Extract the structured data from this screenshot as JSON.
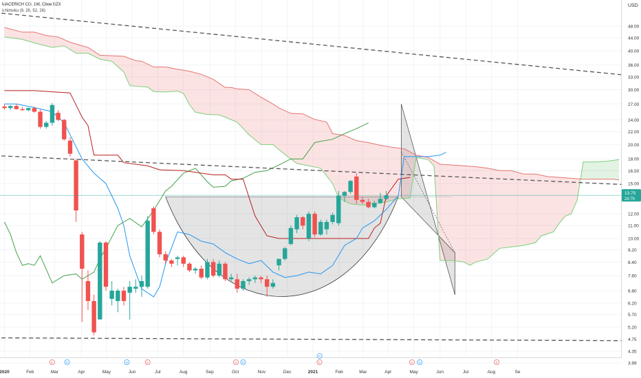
{
  "header": {
    "title": "MACERICH CO, 1W, Cboe BZX",
    "indicator": "Ichimoku (9, 26, 52, 26)"
  },
  "chart_data": {
    "type": "candlestick",
    "interval": "1W",
    "currency": "USD",
    "y_scale": "log",
    "ylim": [
      3.99,
      60
    ],
    "y_ticks": [
      "48.00",
      "44.00",
      "40.00",
      "36.00",
      "33.00",
      "30.00",
      "27.00",
      "24.00",
      "22.00",
      "20.00",
      "18.00",
      "16.50",
      "15.00",
      "12.00",
      "11.00",
      "10.00",
      "9.20",
      "8.40",
      "7.60",
      "6.80",
      "6.20",
      "5.70",
      "5.20",
      "4.75",
      "4.35",
      "3.99"
    ],
    "x_ticks": [
      {
        "label": "2020",
        "week": 0,
        "bold": true
      },
      {
        "label": "Feb",
        "week": 4.3
      },
      {
        "label": "Mar",
        "week": 8.4
      },
      {
        "label": "Apr",
        "week": 12.9
      },
      {
        "label": "May",
        "week": 17.1
      },
      {
        "label": "Jun",
        "week": 21.4
      },
      {
        "label": "Jul",
        "week": 25.7
      },
      {
        "label": "Aug",
        "week": 30
      },
      {
        "label": "Sep",
        "week": 34.4
      },
      {
        "label": "Oct",
        "week": 38.7
      },
      {
        "label": "Nov",
        "week": 43.1
      },
      {
        "label": "Dec",
        "week": 47.4
      },
      {
        "label": "2021",
        "week": 51.7,
        "bold": true
      },
      {
        "label": "Feb",
        "week": 56.1
      },
      {
        "label": "Mar",
        "week": 60.1
      },
      {
        "label": "Apr",
        "week": 64.3
      },
      {
        "label": "May",
        "week": 68.6
      },
      {
        "label": "Jun",
        "week": 73
      },
      {
        "label": "Jul",
        "week": 77.3
      },
      {
        "label": "Aug",
        "week": 81.6
      },
      {
        "label": "Se",
        "week": 86
      }
    ],
    "last_price": "13.75",
    "countdown": "2d 7h",
    "candles": [
      {
        "o": 26.5,
        "h": 27.0,
        "l": 25.9,
        "c": 26.2
      },
      {
        "o": 26.2,
        "h": 26.8,
        "l": 25.8,
        "c": 26.6
      },
      {
        "o": 26.6,
        "h": 27.0,
        "l": 25.9,
        "c": 26.0
      },
      {
        "o": 26.0,
        "h": 26.4,
        "l": 25.7,
        "c": 25.8
      },
      {
        "o": 25.8,
        "h": 26.3,
        "l": 25.6,
        "c": 26.2
      },
      {
        "o": 26.2,
        "h": 26.5,
        "l": 25.3,
        "c": 25.5
      },
      {
        "o": 25.5,
        "h": 25.9,
        "l": 22.5,
        "c": 22.8
      },
      {
        "o": 22.8,
        "h": 23.8,
        "l": 22.5,
        "c": 23.5
      },
      {
        "o": 23.5,
        "h": 27.2,
        "l": 23.0,
        "c": 26.8
      },
      {
        "o": 25.3,
        "h": 25.8,
        "l": 23.8,
        "c": 24.0
      },
      {
        "o": 24.0,
        "h": 24.2,
        "l": 20.6,
        "c": 20.8
      },
      {
        "o": 20.6,
        "h": 21.1,
        "l": 18.3,
        "c": 18.7
      },
      {
        "o": 17.8,
        "h": 18.0,
        "l": 11.3,
        "c": 12.3
      },
      {
        "o": 10.3,
        "h": 10.5,
        "l": 5.4,
        "c": 8.0
      },
      {
        "o": 7.3,
        "h": 7.9,
        "l": 5.9,
        "c": 6.3
      },
      {
        "o": 6.3,
        "h": 6.6,
        "l": 4.9,
        "c": 5.0
      },
      {
        "o": 5.5,
        "h": 9.8,
        "l": 5.5,
        "c": 9.7
      },
      {
        "o": 9.7,
        "h": 9.8,
        "l": 6.8,
        "c": 7.0
      },
      {
        "o": 6.4,
        "h": 7.3,
        "l": 6.1,
        "c": 6.8
      },
      {
        "o": 6.3,
        "h": 6.9,
        "l": 5.8,
        "c": 6.8
      },
      {
        "o": 6.8,
        "h": 7.0,
        "l": 6.1,
        "c": 6.3
      },
      {
        "o": 6.7,
        "h": 7.3,
        "l": 5.5,
        "c": 7.0
      },
      {
        "o": 6.9,
        "h": 7.4,
        "l": 6.7,
        "c": 7.0
      },
      {
        "o": 7.0,
        "h": 7.6,
        "l": 6.5,
        "c": 7.3
      },
      {
        "o": 7.0,
        "h": 11.8,
        "l": 6.9,
        "c": 11.4
      },
      {
        "o": 12.5,
        "h": 12.7,
        "l": 10.3,
        "c": 10.5
      },
      {
        "o": 10.5,
        "h": 10.7,
        "l": 8.7,
        "c": 8.9
      },
      {
        "o": 8.9,
        "h": 9.1,
        "l": 8.3,
        "c": 8.5
      },
      {
        "o": 8.5,
        "h": 8.6,
        "l": 8.1,
        "c": 8.3
      },
      {
        "o": 8.6,
        "h": 8.8,
        "l": 8.2,
        "c": 8.7
      },
      {
        "o": 8.7,
        "h": 8.8,
        "l": 8.1,
        "c": 8.3
      },
      {
        "o": 8.3,
        "h": 8.4,
        "l": 7.8,
        "c": 7.9
      },
      {
        "o": 7.9,
        "h": 8.1,
        "l": 7.7,
        "c": 8.0
      },
      {
        "o": 8.0,
        "h": 8.2,
        "l": 7.4,
        "c": 7.5
      },
      {
        "o": 7.5,
        "h": 8.6,
        "l": 7.4,
        "c": 8.4
      },
      {
        "o": 8.4,
        "h": 8.6,
        "l": 7.5,
        "c": 7.6
      },
      {
        "o": 7.6,
        "h": 8.5,
        "l": 7.5,
        "c": 8.3
      },
      {
        "o": 8.3,
        "h": 8.4,
        "l": 7.3,
        "c": 7.4
      },
      {
        "o": 7.4,
        "h": 7.7,
        "l": 7.3,
        "c": 7.5
      },
      {
        "o": 7.4,
        "h": 7.7,
        "l": 6.7,
        "c": 6.9
      },
      {
        "o": 6.9,
        "h": 7.4,
        "l": 6.8,
        "c": 7.3
      },
      {
        "o": 7.3,
        "h": 7.5,
        "l": 7.1,
        "c": 7.4
      },
      {
        "o": 7.4,
        "h": 7.6,
        "l": 7.2,
        "c": 7.5
      },
      {
        "o": 7.5,
        "h": 7.6,
        "l": 7.2,
        "c": 7.4
      },
      {
        "o": 7.4,
        "h": 7.6,
        "l": 6.5,
        "c": 7.0
      },
      {
        "o": 7.0,
        "h": 7.4,
        "l": 6.9,
        "c": 7.2
      },
      {
        "o": 8.2,
        "h": 8.6,
        "l": 7.9,
        "c": 8.6
      },
      {
        "o": 8.6,
        "h": 9.4,
        "l": 8.5,
        "c": 9.3
      },
      {
        "o": 9.6,
        "h": 11.0,
        "l": 9.5,
        "c": 10.8
      },
      {
        "o": 10.7,
        "h": 11.9,
        "l": 10.4,
        "c": 11.7
      },
      {
        "o": 11.7,
        "h": 11.8,
        "l": 10.7,
        "c": 11.0
      },
      {
        "o": 10.0,
        "h": 12.2,
        "l": 9.8,
        "c": 12.0
      },
      {
        "o": 12.0,
        "h": 12.2,
        "l": 10.1,
        "c": 10.3
      },
      {
        "o": 10.3,
        "h": 11.5,
        "l": 10.2,
        "c": 11.3
      },
      {
        "o": 10.7,
        "h": 11.5,
        "l": 10.3,
        "c": 11.3
      },
      {
        "o": 11.3,
        "h": 12.1,
        "l": 11.1,
        "c": 11.9
      },
      {
        "o": 11.2,
        "h": 14.2,
        "l": 11.0,
        "c": 13.7
      },
      {
        "o": 13.7,
        "h": 14.2,
        "l": 13.1,
        "c": 14.1
      },
      {
        "o": 14.1,
        "h": 15.4,
        "l": 13.9,
        "c": 15.3
      },
      {
        "o": 15.8,
        "h": 16.2,
        "l": 12.9,
        "c": 13.3
      },
      {
        "o": 13.3,
        "h": 13.6,
        "l": 12.9,
        "c": 13.1
      },
      {
        "o": 13.1,
        "h": 13.4,
        "l": 12.5,
        "c": 12.6
      },
      {
        "o": 12.6,
        "h": 13.2,
        "l": 12.5,
        "c": 13.0
      },
      {
        "o": 13.0,
        "h": 14.0,
        "l": 12.9,
        "c": 13.4
      },
      {
        "o": 13.4,
        "h": 14.2,
        "l": 13.3,
        "c": 13.75
      }
    ],
    "tenkan": [
      [
        0,
        27.0
      ],
      [
        2,
        27.0
      ],
      [
        5,
        26.3
      ],
      [
        8,
        25.5
      ],
      [
        10,
        23.5
      ],
      [
        13,
        18.0
      ],
      [
        15,
        16.2
      ],
      [
        17,
        15.0
      ],
      [
        19,
        12.5
      ],
      [
        20,
        11.0
      ],
      [
        21,
        8.8
      ],
      [
        23,
        6.9
      ],
      [
        25,
        6.5
      ],
      [
        26,
        7.0
      ],
      [
        27,
        8.3
      ],
      [
        29,
        10.5
      ],
      [
        31,
        10.3
      ],
      [
        33,
        9.8
      ],
      [
        35,
        9.6
      ],
      [
        37,
        9.0
      ],
      [
        39,
        8.6
      ],
      [
        41,
        8.3
      ],
      [
        43,
        8.5
      ],
      [
        45,
        7.8
      ],
      [
        47,
        7.5
      ],
      [
        49,
        7.6
      ],
      [
        51,
        7.8
      ],
      [
        53,
        7.7
      ],
      [
        55,
        8.2
      ],
      [
        57,
        9.5
      ],
      [
        59,
        10.0
      ],
      [
        60,
        10.8
      ],
      [
        62,
        11.4
      ],
      [
        64,
        12.4
      ],
      [
        66,
        13.7
      ],
      [
        67,
        18.3
      ],
      [
        69,
        18.3
      ],
      [
        71,
        18.3
      ],
      [
        73,
        18.5
      ],
      [
        74,
        18.9
      ]
    ],
    "kijun": [
      [
        0,
        29.8
      ],
      [
        5,
        29.8
      ],
      [
        11,
        29.3
      ],
      [
        13,
        24.5
      ],
      [
        14,
        23.0
      ],
      [
        15,
        18.5
      ],
      [
        19,
        18.5
      ],
      [
        20,
        17.5
      ],
      [
        24,
        17.1
      ],
      [
        26,
        16.6
      ],
      [
        30,
        16.5
      ],
      [
        35,
        16.0
      ],
      [
        37,
        16.0
      ],
      [
        38,
        15.5
      ],
      [
        40,
        15.5
      ],
      [
        42,
        11.8
      ],
      [
        44,
        10.2
      ],
      [
        46,
        10.0
      ],
      [
        50,
        10.0
      ],
      [
        52,
        10.0
      ],
      [
        58,
        10.0
      ],
      [
        61,
        10.0
      ],
      [
        62,
        10.8
      ],
      [
        63,
        11.2
      ],
      [
        64,
        13.7
      ],
      [
        66,
        15.5
      ],
      [
        68,
        15.7
      ]
    ],
    "chikou": [
      [
        0,
        11.3
      ],
      [
        1,
        10.3
      ],
      [
        2,
        9.0
      ],
      [
        3,
        8.2
      ],
      [
        4,
        8.3
      ],
      [
        5,
        8.2
      ],
      [
        6,
        8.8
      ],
      [
        8,
        7.2
      ],
      [
        10,
        7.6
      ],
      [
        12,
        7.7
      ],
      [
        13,
        7.4
      ],
      [
        15,
        7.8
      ],
      [
        16,
        8.6
      ],
      [
        17,
        9.3
      ],
      [
        19,
        11.0
      ],
      [
        21,
        11.6
      ],
      [
        23,
        10.9
      ],
      [
        25,
        12.3
      ],
      [
        27,
        14.2
      ],
      [
        28,
        14.7
      ],
      [
        30,
        16.2
      ],
      [
        32,
        16.8
      ],
      [
        34,
        15.2
      ],
      [
        35,
        14.6
      ],
      [
        37,
        14.7
      ],
      [
        38,
        15.3
      ],
      [
        40,
        15.6
      ],
      [
        42,
        16.3
      ],
      [
        44,
        16.5
      ],
      [
        46,
        17.2
      ],
      [
        48,
        18.0
      ],
      [
        50,
        18.0
      ],
      [
        52,
        20.3
      ],
      [
        53,
        20.5
      ],
      [
        55,
        20.8
      ],
      [
        57,
        21.7
      ],
      [
        59,
        22.5
      ],
      [
        61,
        23.5
      ]
    ],
    "senkou_a": [
      [
        0,
        44.3
      ],
      [
        3,
        43.5
      ],
      [
        5,
        42.4
      ],
      [
        8,
        41.0
      ],
      [
        10,
        41.5
      ],
      [
        12,
        39.3
      ],
      [
        14,
        39.3
      ],
      [
        16,
        37.6
      ],
      [
        18,
        37.0
      ],
      [
        20,
        34.2
      ],
      [
        21,
        30.9
      ],
      [
        24,
        30.6
      ],
      [
        25,
        29.6
      ],
      [
        27,
        29.5
      ],
      [
        29,
        29.7
      ],
      [
        30,
        29.2
      ],
      [
        31,
        26.9
      ],
      [
        32,
        25.4
      ],
      [
        34,
        25.0
      ],
      [
        36,
        24.9
      ],
      [
        37,
        24.5
      ],
      [
        39,
        23.6
      ],
      [
        41,
        21.5
      ],
      [
        43,
        20.0
      ],
      [
        45,
        20.0
      ],
      [
        47,
        18.6
      ],
      [
        49,
        17.4
      ],
      [
        51,
        17.1
      ],
      [
        53,
        16.8
      ],
      [
        55,
        15.0
      ],
      [
        56,
        13.5
      ],
      [
        58,
        12.9
      ],
      [
        60,
        12.8
      ],
      [
        62,
        12.9
      ],
      [
        64,
        13.1
      ],
      [
        66,
        13.4
      ],
      [
        68,
        13.5
      ],
      [
        69,
        18.2
      ],
      [
        71,
        17.9
      ],
      [
        72,
        17.1
      ],
      [
        73,
        8.5
      ],
      [
        75,
        8.5
      ],
      [
        77,
        8.4
      ],
      [
        78,
        8.2
      ],
      [
        79,
        8.4
      ],
      [
        81,
        8.6
      ],
      [
        83,
        9.3
      ],
      [
        85,
        9.4
      ],
      [
        87,
        9.5
      ],
      [
        89,
        9.7
      ],
      [
        90,
        10.2
      ],
      [
        92,
        10.5
      ],
      [
        93,
        11.2
      ],
      [
        94,
        11.8
      ],
      [
        95,
        12.0
      ],
      [
        96,
        13.3
      ],
      [
        97,
        17.6
      ],
      [
        99,
        17.6
      ],
      [
        101,
        17.7
      ],
      [
        103,
        17.9
      ]
    ],
    "senkou_b": [
      [
        0,
        47.5
      ],
      [
        3,
        45.9
      ],
      [
        5,
        45.9
      ],
      [
        7,
        44.8
      ],
      [
        9,
        44.3
      ],
      [
        11,
        42.6
      ],
      [
        14,
        41.0
      ],
      [
        16,
        38.7
      ],
      [
        20,
        38.4
      ],
      [
        22,
        37.2
      ],
      [
        23,
        37.0
      ],
      [
        25,
        35.5
      ],
      [
        27,
        35.5
      ],
      [
        29,
        34.9
      ],
      [
        31,
        34.4
      ],
      [
        33,
        33.6
      ],
      [
        35,
        32.4
      ],
      [
        37,
        30.5
      ],
      [
        38,
        30.5
      ],
      [
        39,
        30.2
      ],
      [
        41,
        30.0
      ],
      [
        43,
        28.4
      ],
      [
        45,
        27.0
      ],
      [
        46,
        26.2
      ],
      [
        48,
        25.2
      ],
      [
        50,
        25.1
      ],
      [
        52,
        24.1
      ],
      [
        54,
        23.6
      ],
      [
        55,
        21.7
      ],
      [
        57,
        21.4
      ],
      [
        59,
        20.6
      ],
      [
        61,
        20.3
      ],
      [
        63,
        19.9
      ],
      [
        65,
        19.6
      ],
      [
        67,
        19.4
      ],
      [
        69,
        18.5
      ],
      [
        71,
        18.2
      ],
      [
        73,
        17.3
      ],
      [
        75,
        17.2
      ],
      [
        77,
        17.1
      ],
      [
        79,
        17.0
      ],
      [
        81,
        16.8
      ],
      [
        83,
        16.5
      ],
      [
        85,
        16.5
      ],
      [
        87,
        16.1
      ],
      [
        89,
        16.1
      ],
      [
        91,
        15.8
      ],
      [
        93,
        15.7
      ],
      [
        95,
        15.6
      ],
      [
        97,
        15.5
      ],
      [
        98,
        15.5
      ],
      [
        100,
        15.5
      ],
      [
        102,
        15.5
      ],
      [
        103,
        15.4
      ]
    ],
    "trendlines": [
      {
        "p1": [
          -0.5,
          52.8
        ],
        "p2": [
          103.5,
          33.5
        ]
      },
      {
        "p1": [
          -0.5,
          18.4
        ],
        "p2": [
          103.5,
          14.9
        ]
      },
      {
        "p1": [
          -0.5,
          4.8
        ],
        "p2": [
          103.5,
          4.7
        ]
      }
    ],
    "cup_band": {
      "top": 13.6,
      "from": 27,
      "to": 75
    },
    "cup_arc": {
      "from": 27,
      "to": 66,
      "bottom": 6.2
    },
    "flag": {
      "top": [
        66.5,
        27.0
      ],
      "mid": [
        66.5,
        19.0
      ],
      "end": [
        75.5,
        9.0
      ],
      "low": [
        75.5,
        6.6
      ],
      "start": [
        66.5,
        13.6
      ]
    },
    "events": [
      {
        "week": 8,
        "label": "E",
        "type": "earnings"
      },
      {
        "week": 10.5,
        "label": "D",
        "type": "dividend"
      },
      {
        "week": 20.5,
        "label": "D",
        "type": "dividend"
      },
      {
        "week": 24,
        "label": "E",
        "type": "earnings"
      },
      {
        "week": 38.8,
        "label": "E",
        "type": "earnings"
      },
      {
        "week": 40,
        "label": "D",
        "type": "dividend"
      },
      {
        "week": 52.8,
        "label": "E",
        "type": "earnings"
      },
      {
        "week": 52.8,
        "label": "D",
        "type": "dividend"
      },
      {
        "week": 68.3,
        "label": "E",
        "type": "earnings"
      },
      {
        "week": 69.6,
        "label": "D",
        "type": "dividend"
      },
      {
        "week": 82.5,
        "label": "E",
        "type": "earnings"
      }
    ],
    "colors": {
      "up": "#26a69a",
      "down": "#ef5350",
      "tenkan": "#2196f3",
      "kijun": "#b71c1c",
      "chikou": "#43a047",
      "span_a": "#7ad07a",
      "span_b": "#e57373",
      "cloud_bull": "rgba(76,175,80,0.16)",
      "cloud_bear": "rgba(239,83,80,0.16)",
      "last_price": "#26a69a",
      "trend": "#555555",
      "pattern": "rgba(120,120,120,0.20)"
    }
  }
}
